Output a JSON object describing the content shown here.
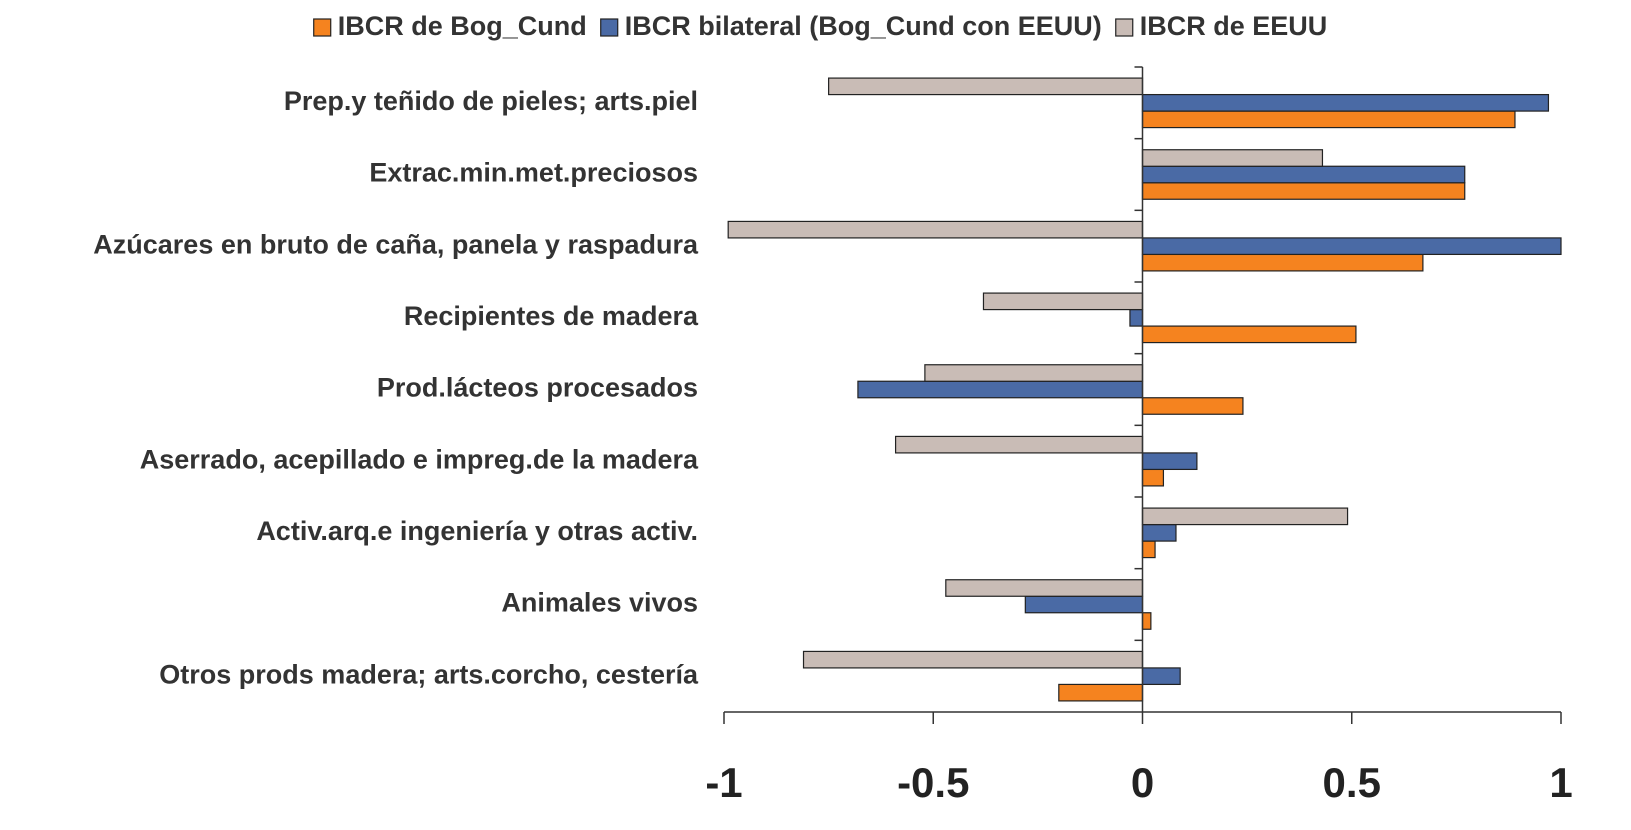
{
  "chart_data": {
    "type": "barh",
    "categories": [
      "Prep.y teñido de pieles; arts.piel",
      "Extrac.min.met.preciosos",
      "Azúcares en bruto de caña, panela y raspadura",
      "Recipientes de madera",
      "Prod.lácteos procesados",
      "Aserrado, acepillado e impreg.de la madera",
      "Activ.arq.e ingeniería y otras activ.",
      "Animales vivos",
      "Otros prods madera; arts.corcho, cestería"
    ],
    "series": [
      {
        "name": "IBCR de Bog_Cund",
        "color": "#f5831f",
        "values": [
          0.89,
          0.77,
          0.67,
          0.51,
          0.24,
          0.05,
          0.03,
          0.02,
          -0.2
        ]
      },
      {
        "name": "IBCR bilateral (Bog_Cund con EEUU)",
        "color": "#4a6aa5",
        "values": [
          0.97,
          0.77,
          1.0,
          -0.03,
          -0.68,
          0.13,
          0.08,
          -0.28,
          0.09
        ]
      },
      {
        "name": "IBCR de EEUU",
        "color": "#c9bcb6",
        "values": [
          -0.75,
          0.43,
          -0.99,
          -0.38,
          -0.52,
          -0.59,
          0.49,
          -0.47,
          -0.81
        ]
      }
    ],
    "xlim": [
      -1,
      1
    ],
    "xticks": [
      -1,
      -0.5,
      0,
      0.5,
      1
    ],
    "legend": "top"
  }
}
